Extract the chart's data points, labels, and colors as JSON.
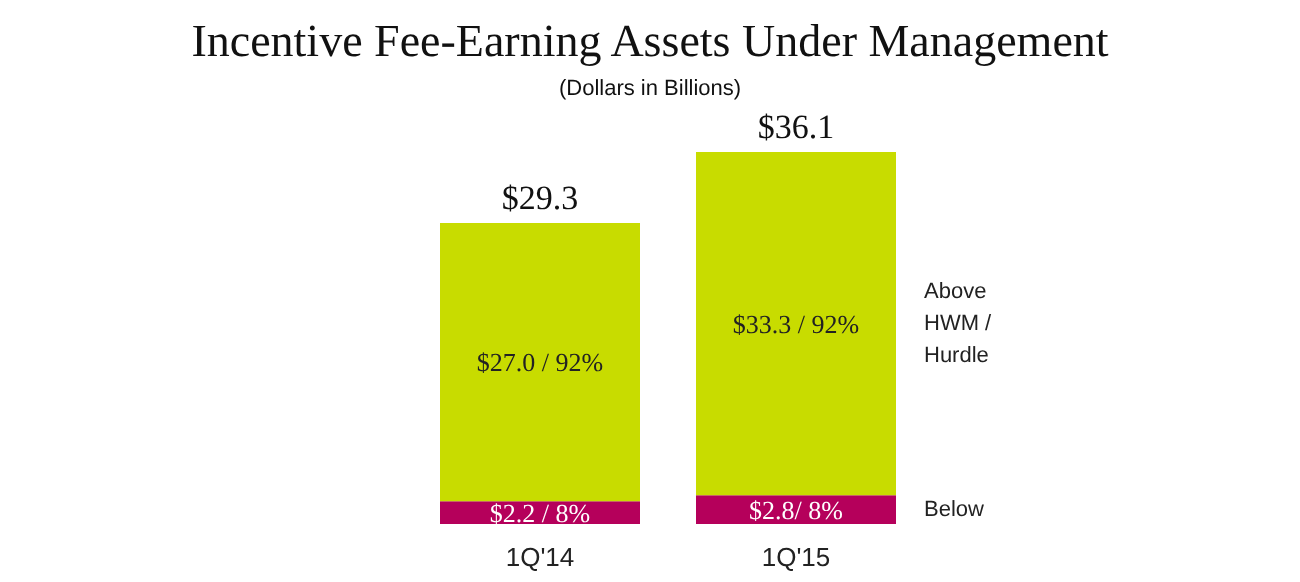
{
  "chart_data": {
    "type": "bar",
    "title": "Incentive Fee-Earning Assets Under Management",
    "subtitle": "(Dollars in Billions)",
    "categories": [
      "1Q'14",
      "1Q'15"
    ],
    "stacked": true,
    "series": [
      {
        "name": "Below",
        "color": "#b5005b",
        "values": [
          2.2,
          2.8
        ],
        "value_labels": [
          "$2.2 / 8%",
          "$2.8/ 8%"
        ]
      },
      {
        "name": "Above HWM / Hurdle",
        "color": "#c8dc00",
        "values": [
          27.0,
          33.3
        ],
        "value_labels": [
          "$27.0 / 92%",
          "$33.3 / 92%"
        ]
      }
    ],
    "totals": [
      "$29.3",
      "$36.1"
    ]
  }
}
